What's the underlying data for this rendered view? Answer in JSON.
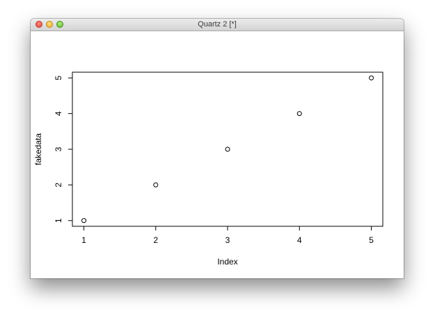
{
  "window": {
    "title": "Quartz 2 [*]",
    "buttons": [
      "close-button",
      "minimize-button",
      "zoom-button"
    ]
  },
  "chart_data": {
    "type": "scatter",
    "x": [
      1,
      2,
      3,
      4,
      5
    ],
    "y": [
      1,
      2,
      3,
      4,
      5
    ],
    "xlabel": "Index",
    "ylabel": "fakedata",
    "xlim": [
      0.84,
      5.16
    ],
    "ylim": [
      0.84,
      5.16
    ],
    "x_ticks": [
      1,
      2,
      3,
      4,
      5
    ],
    "y_ticks": [
      1,
      2,
      3,
      4,
      5
    ],
    "marker": "open-circle",
    "grid": false,
    "colors": {
      "points": "#000000",
      "axes": "#000000"
    }
  }
}
